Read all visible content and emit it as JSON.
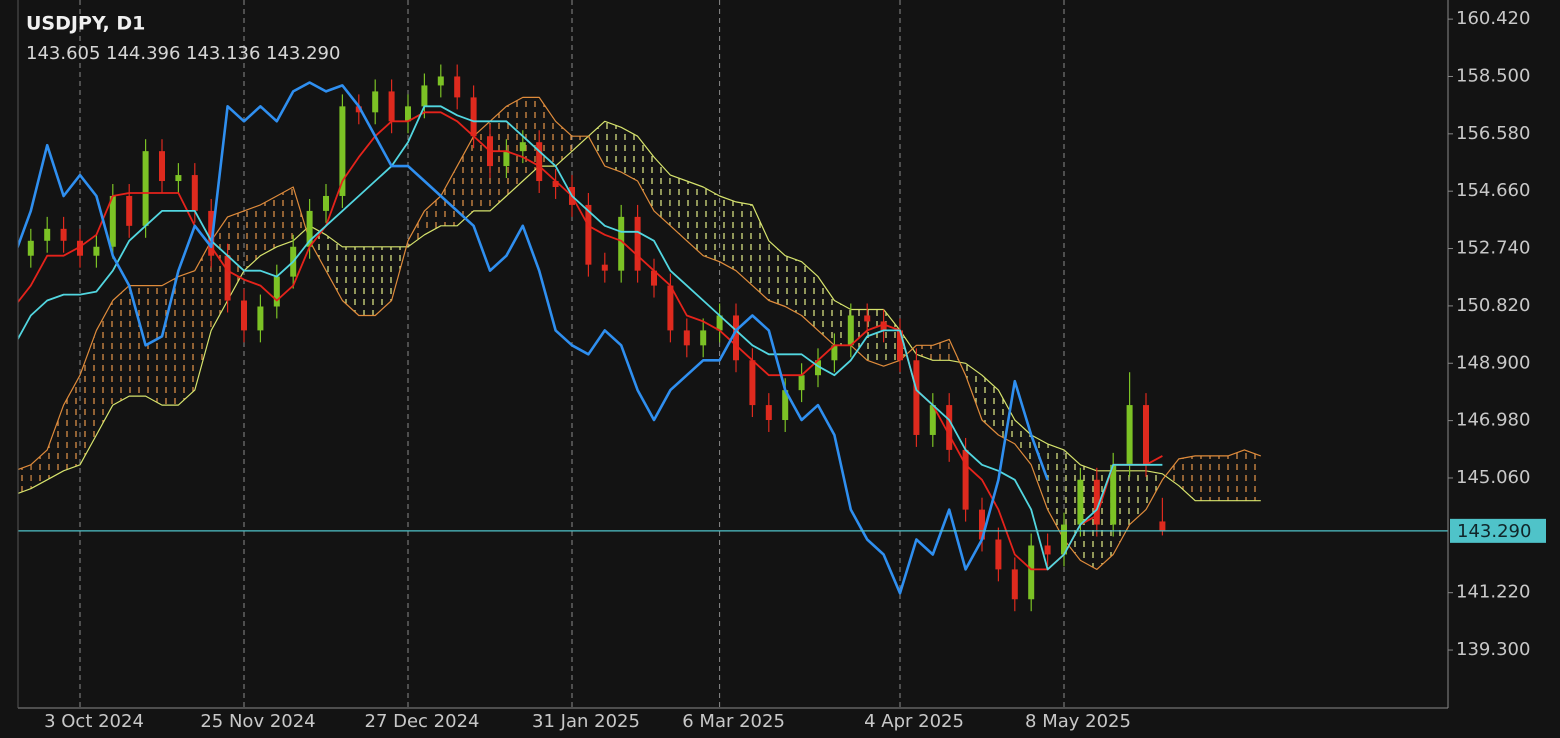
{
  "chart_data": {
    "type": "candlestick",
    "title": "USDJPY, D1",
    "ohlc_labels": [
      "143.605",
      "144.396",
      "143.136",
      "143.290"
    ],
    "categories": [
      null,
      null,
      null,
      null,
      "3 Oct 2024",
      null,
      null,
      null,
      null,
      null,
      null,
      null,
      null,
      null,
      "25 Nov 2024",
      null,
      null,
      null,
      null,
      null,
      null,
      null,
      null,
      null,
      "27 Dec 2024",
      null,
      null,
      null,
      null,
      null,
      null,
      null,
      null,
      null,
      "31 Jan 2025",
      null,
      null,
      null,
      null,
      null,
      null,
      null,
      null,
      "6 Mar 2025",
      null,
      null,
      null,
      null,
      null,
      null,
      null,
      null,
      null,
      null,
      "4 Apr 2025",
      null,
      null,
      null,
      null,
      null,
      null,
      null,
      null,
      null,
      "8 May 2025",
      null,
      null,
      null,
      null,
      null,
      null,
      null,
      null,
      null,
      null,
      null,
      null
    ],
    "open": [
      152.0,
      152.5,
      153.0,
      153.4,
      153.0,
      152.5,
      152.8,
      154.5,
      153.5,
      156.0,
      155.0,
      155.2,
      154.0,
      152.5,
      151.0,
      150.0,
      150.8,
      151.8,
      152.8,
      154.0,
      154.5,
      157.5,
      157.3,
      158.0,
      157.0,
      157.5,
      158.2,
      158.5,
      157.8,
      156.5,
      155.5,
      156.0,
      156.3,
      155.0,
      154.8,
      154.2,
      152.2,
      152.0,
      153.8,
      152.0,
      151.5,
      150.0,
      149.5,
      150.0,
      150.5,
      149.0,
      147.5,
      147.0,
      148.0,
      148.5,
      149.0,
      149.5,
      150.5,
      150.3,
      150.0,
      149.0,
      146.5,
      147.5,
      146.0,
      144.0,
      143.0,
      142.0,
      141.0,
      142.8,
      142.5,
      143.5,
      145.0,
      143.5,
      145.5,
      147.5,
      143.605,
      null,
      null,
      null,
      null,
      null,
      null
    ],
    "high": [
      152.9,
      153.4,
      153.8,
      153.8,
      153.4,
      153.2,
      154.9,
      154.9,
      156.4,
      156.4,
      155.6,
      155.6,
      154.4,
      152.9,
      151.4,
      151.2,
      152.2,
      153.2,
      154.4,
      154.9,
      157.9,
      157.9,
      158.4,
      158.4,
      157.9,
      158.6,
      158.9,
      158.9,
      158.2,
      156.9,
      156.4,
      156.7,
      156.7,
      155.4,
      155.2,
      154.6,
      152.6,
      154.2,
      154.2,
      152.4,
      151.9,
      150.4,
      150.4,
      150.9,
      150.9,
      149.4,
      147.9,
      148.4,
      148.9,
      149.4,
      149.9,
      150.9,
      150.9,
      150.7,
      150.4,
      149.4,
      147.9,
      147.9,
      146.4,
      144.4,
      143.4,
      142.4,
      143.2,
      143.2,
      143.9,
      145.4,
      145.4,
      145.9,
      148.6,
      147.9,
      144.396,
      null,
      null,
      null,
      null,
      null,
      null
    ],
    "low": [
      151.6,
      152.1,
      152.6,
      152.6,
      152.1,
      152.1,
      152.4,
      153.1,
      153.1,
      154.6,
      154.6,
      153.6,
      152.1,
      150.6,
      149.6,
      149.6,
      150.4,
      151.4,
      152.4,
      153.6,
      154.1,
      156.9,
      156.9,
      156.6,
      156.6,
      157.1,
      157.8,
      157.4,
      156.1,
      155.1,
      155.1,
      155.6,
      154.6,
      154.4,
      153.8,
      151.8,
      151.6,
      151.6,
      151.6,
      151.1,
      149.6,
      149.1,
      149.1,
      149.6,
      148.6,
      147.1,
      146.6,
      146.6,
      147.6,
      148.1,
      148.6,
      149.1,
      149.9,
      149.6,
      148.6,
      146.1,
      146.1,
      145.6,
      143.6,
      142.6,
      141.6,
      140.6,
      140.6,
      142.1,
      142.1,
      143.1,
      143.1,
      143.1,
      145.1,
      145.1,
      143.136,
      null,
      null,
      null,
      null,
      null,
      null
    ],
    "close": [
      152.5,
      153.0,
      153.4,
      153.0,
      152.5,
      152.8,
      154.5,
      153.5,
      156.0,
      155.0,
      155.2,
      154.0,
      152.5,
      151.0,
      150.0,
      150.8,
      151.8,
      152.8,
      154.0,
      154.5,
      157.5,
      157.3,
      158.0,
      157.0,
      157.5,
      158.2,
      158.5,
      157.8,
      156.5,
      155.5,
      156.0,
      156.3,
      155.0,
      154.8,
      154.2,
      152.2,
      152.0,
      153.8,
      152.0,
      151.5,
      150.0,
      149.5,
      150.0,
      150.5,
      149.0,
      147.5,
      147.0,
      148.0,
      148.5,
      149.0,
      149.5,
      150.5,
      150.3,
      150.0,
      149.0,
      146.5,
      147.5,
      146.0,
      144.0,
      143.0,
      142.0,
      141.0,
      142.8,
      142.5,
      143.5,
      145.0,
      143.5,
      145.5,
      147.5,
      145.5,
      143.29,
      null,
      null,
      null,
      null,
      null,
      null
    ],
    "up_color": "#7cc225",
    "down_color": "#de2a1e",
    "cloud": {
      "bull_color": "#e6f08a",
      "bear_color": "#e8964a",
      "span_a": {
        "color": "#d6e36c",
        "values": [
          144.5,
          144.7,
          145.0,
          145.3,
          145.5,
          146.5,
          147.5,
          147.8,
          147.8,
          147.5,
          147.5,
          148.0,
          150.0,
          151.0,
          152.0,
          152.5,
          152.8,
          153.0,
          153.5,
          153.2,
          152.8,
          152.8,
          152.8,
          152.8,
          152.8,
          153.2,
          153.5,
          153.5,
          154.0,
          154.0,
          154.5,
          155.0,
          155.5,
          155.5,
          156.0,
          156.5,
          157.0,
          156.8,
          156.5,
          155.8,
          155.2,
          155.0,
          154.8,
          154.5,
          154.3,
          154.2,
          153.0,
          152.5,
          152.3,
          151.8,
          151.0,
          150.7,
          150.7,
          150.7,
          150.0,
          149.2,
          149.0,
          149.0,
          148.9,
          148.5,
          148.0,
          147.0,
          146.5,
          146.2,
          146.0,
          145.5,
          145.3,
          145.3,
          145.3,
          145.3,
          145.2,
          144.8,
          144.3,
          144.3,
          144.3,
          144.3,
          144.3
        ]
      },
      "span_b": {
        "color": "#df8b3b",
        "values": [
          145.3,
          145.5,
          146.0,
          147.5,
          148.5,
          150.0,
          151.0,
          151.5,
          151.5,
          151.5,
          151.8,
          152.0,
          153.0,
          153.8,
          154.0,
          154.2,
          154.5,
          154.8,
          153.0,
          152.0,
          151.0,
          150.5,
          150.5,
          151.0,
          153.0,
          154.0,
          154.5,
          155.5,
          156.5,
          157.0,
          157.5,
          157.8,
          157.8,
          157.0,
          156.5,
          156.5,
          155.5,
          155.3,
          155.0,
          154.0,
          153.5,
          153.0,
          152.5,
          152.3,
          152.0,
          151.5,
          151.0,
          150.8,
          150.5,
          150.0,
          149.5,
          149.5,
          149.0,
          148.8,
          149.0,
          149.5,
          149.5,
          149.7,
          148.5,
          147.0,
          146.5,
          146.2,
          145.5,
          144.0,
          143.0,
          142.3,
          142.0,
          142.5,
          143.5,
          144.0,
          145.0,
          145.7,
          145.8,
          145.8,
          145.8,
          146.0,
          145.8
        ]
      }
    },
    "lines": [
      {
        "color": "#e5231b",
        "width": 1.8,
        "values": [
          150.8,
          151.5,
          152.5,
          152.5,
          152.8,
          153.2,
          154.5,
          154.6,
          154.6,
          154.6,
          154.6,
          153.5,
          152.8,
          152.0,
          151.7,
          151.5,
          151.0,
          151.5,
          152.8,
          153.5,
          155.0,
          155.8,
          156.5,
          157.0,
          157.0,
          157.3,
          157.3,
          157.0,
          156.5,
          156.0,
          156.0,
          155.8,
          155.5,
          155.0,
          154.5,
          153.5,
          153.2,
          153.0,
          152.5,
          152.0,
          151.5,
          150.5,
          150.3,
          150.0,
          149.5,
          149.0,
          148.5,
          148.5,
          148.5,
          149.0,
          149.5,
          149.5,
          150.0,
          150.2,
          150.0,
          148.0,
          147.5,
          146.5,
          145.5,
          145.0,
          144.0,
          142.5,
          142.0,
          142.0,
          142.5,
          143.5,
          143.8,
          145.5,
          145.5,
          145.5,
          145.8,
          null,
          null,
          null,
          null,
          null,
          null
        ]
      },
      {
        "color": "#52d6e0",
        "width": 1.8,
        "values": [
          149.5,
          150.5,
          151.0,
          151.2,
          151.2,
          151.3,
          152.0,
          153.0,
          153.5,
          154.0,
          154.0,
          154.0,
          153.0,
          152.5,
          152.0,
          152.0,
          151.8,
          152.3,
          153.0,
          153.5,
          154.0,
          154.5,
          155.0,
          155.5,
          156.3,
          157.5,
          157.5,
          157.2,
          157.0,
          157.0,
          157.0,
          156.5,
          156.0,
          155.5,
          154.5,
          154.0,
          153.5,
          153.3,
          153.3,
          153.0,
          152.0,
          151.5,
          151.0,
          150.5,
          150.0,
          149.5,
          149.2,
          149.2,
          149.2,
          148.8,
          148.5,
          149.0,
          149.8,
          150.0,
          150.0,
          148.0,
          147.5,
          147.0,
          146.0,
          145.5,
          145.3,
          145.0,
          144.0,
          142.0,
          142.5,
          143.5,
          144.0,
          145.5,
          145.5,
          145.5,
          145.5,
          null,
          null,
          null,
          null,
          null,
          null
        ]
      },
      {
        "color": "#2f8ff0",
        "width": 2.6,
        "values": [
          152.5,
          154.0,
          156.2,
          154.5,
          155.2,
          154.5,
          152.5,
          151.5,
          149.5,
          149.8,
          152.0,
          153.5,
          152.8,
          157.5,
          157.0,
          157.5,
          157.0,
          158.0,
          158.3,
          158.0,
          158.2,
          157.5,
          156.5,
          155.5,
          155.5,
          155.0,
          154.5,
          154.0,
          153.5,
          152.0,
          152.5,
          153.5,
          152.0,
          150.0,
          149.5,
          149.2,
          150.0,
          149.5,
          148.0,
          147.0,
          148.0,
          148.5,
          149.0,
          149.0,
          150.0,
          150.5,
          150.0,
          148.0,
          147.0,
          147.5,
          146.5,
          144.0,
          143.0,
          142.5,
          141.2,
          143.0,
          142.5,
          144.0,
          142.0,
          143.0,
          145.0,
          148.3,
          146.5,
          145.0,
          null,
          null,
          null,
          null,
          null,
          null,
          null,
          null,
          null,
          null,
          null,
          null,
          null
        ]
      }
    ],
    "last_price": {
      "value": 143.29,
      "label": "143.290",
      "color": "#4fc3c9"
    },
    "ylim": [
      137.36,
      161.06
    ],
    "yticks": [
      {
        "value": 160.42,
        "label": "160.420"
      },
      {
        "value": 158.5,
        "label": "158.500"
      },
      {
        "value": 156.58,
        "label": "156.580"
      },
      {
        "value": 154.66,
        "label": "154.660"
      },
      {
        "value": 152.74,
        "label": "152.740"
      },
      {
        "value": 150.82,
        "label": "150.820"
      },
      {
        "value": 148.9,
        "label": "148.900"
      },
      {
        "value": 146.98,
        "label": "146.980"
      },
      {
        "value": 145.06,
        "label": "145.060"
      },
      {
        "value": 141.22,
        "label": "141.220"
      },
      {
        "value": 139.3,
        "label": "139.300"
      }
    ],
    "grid": true
  }
}
